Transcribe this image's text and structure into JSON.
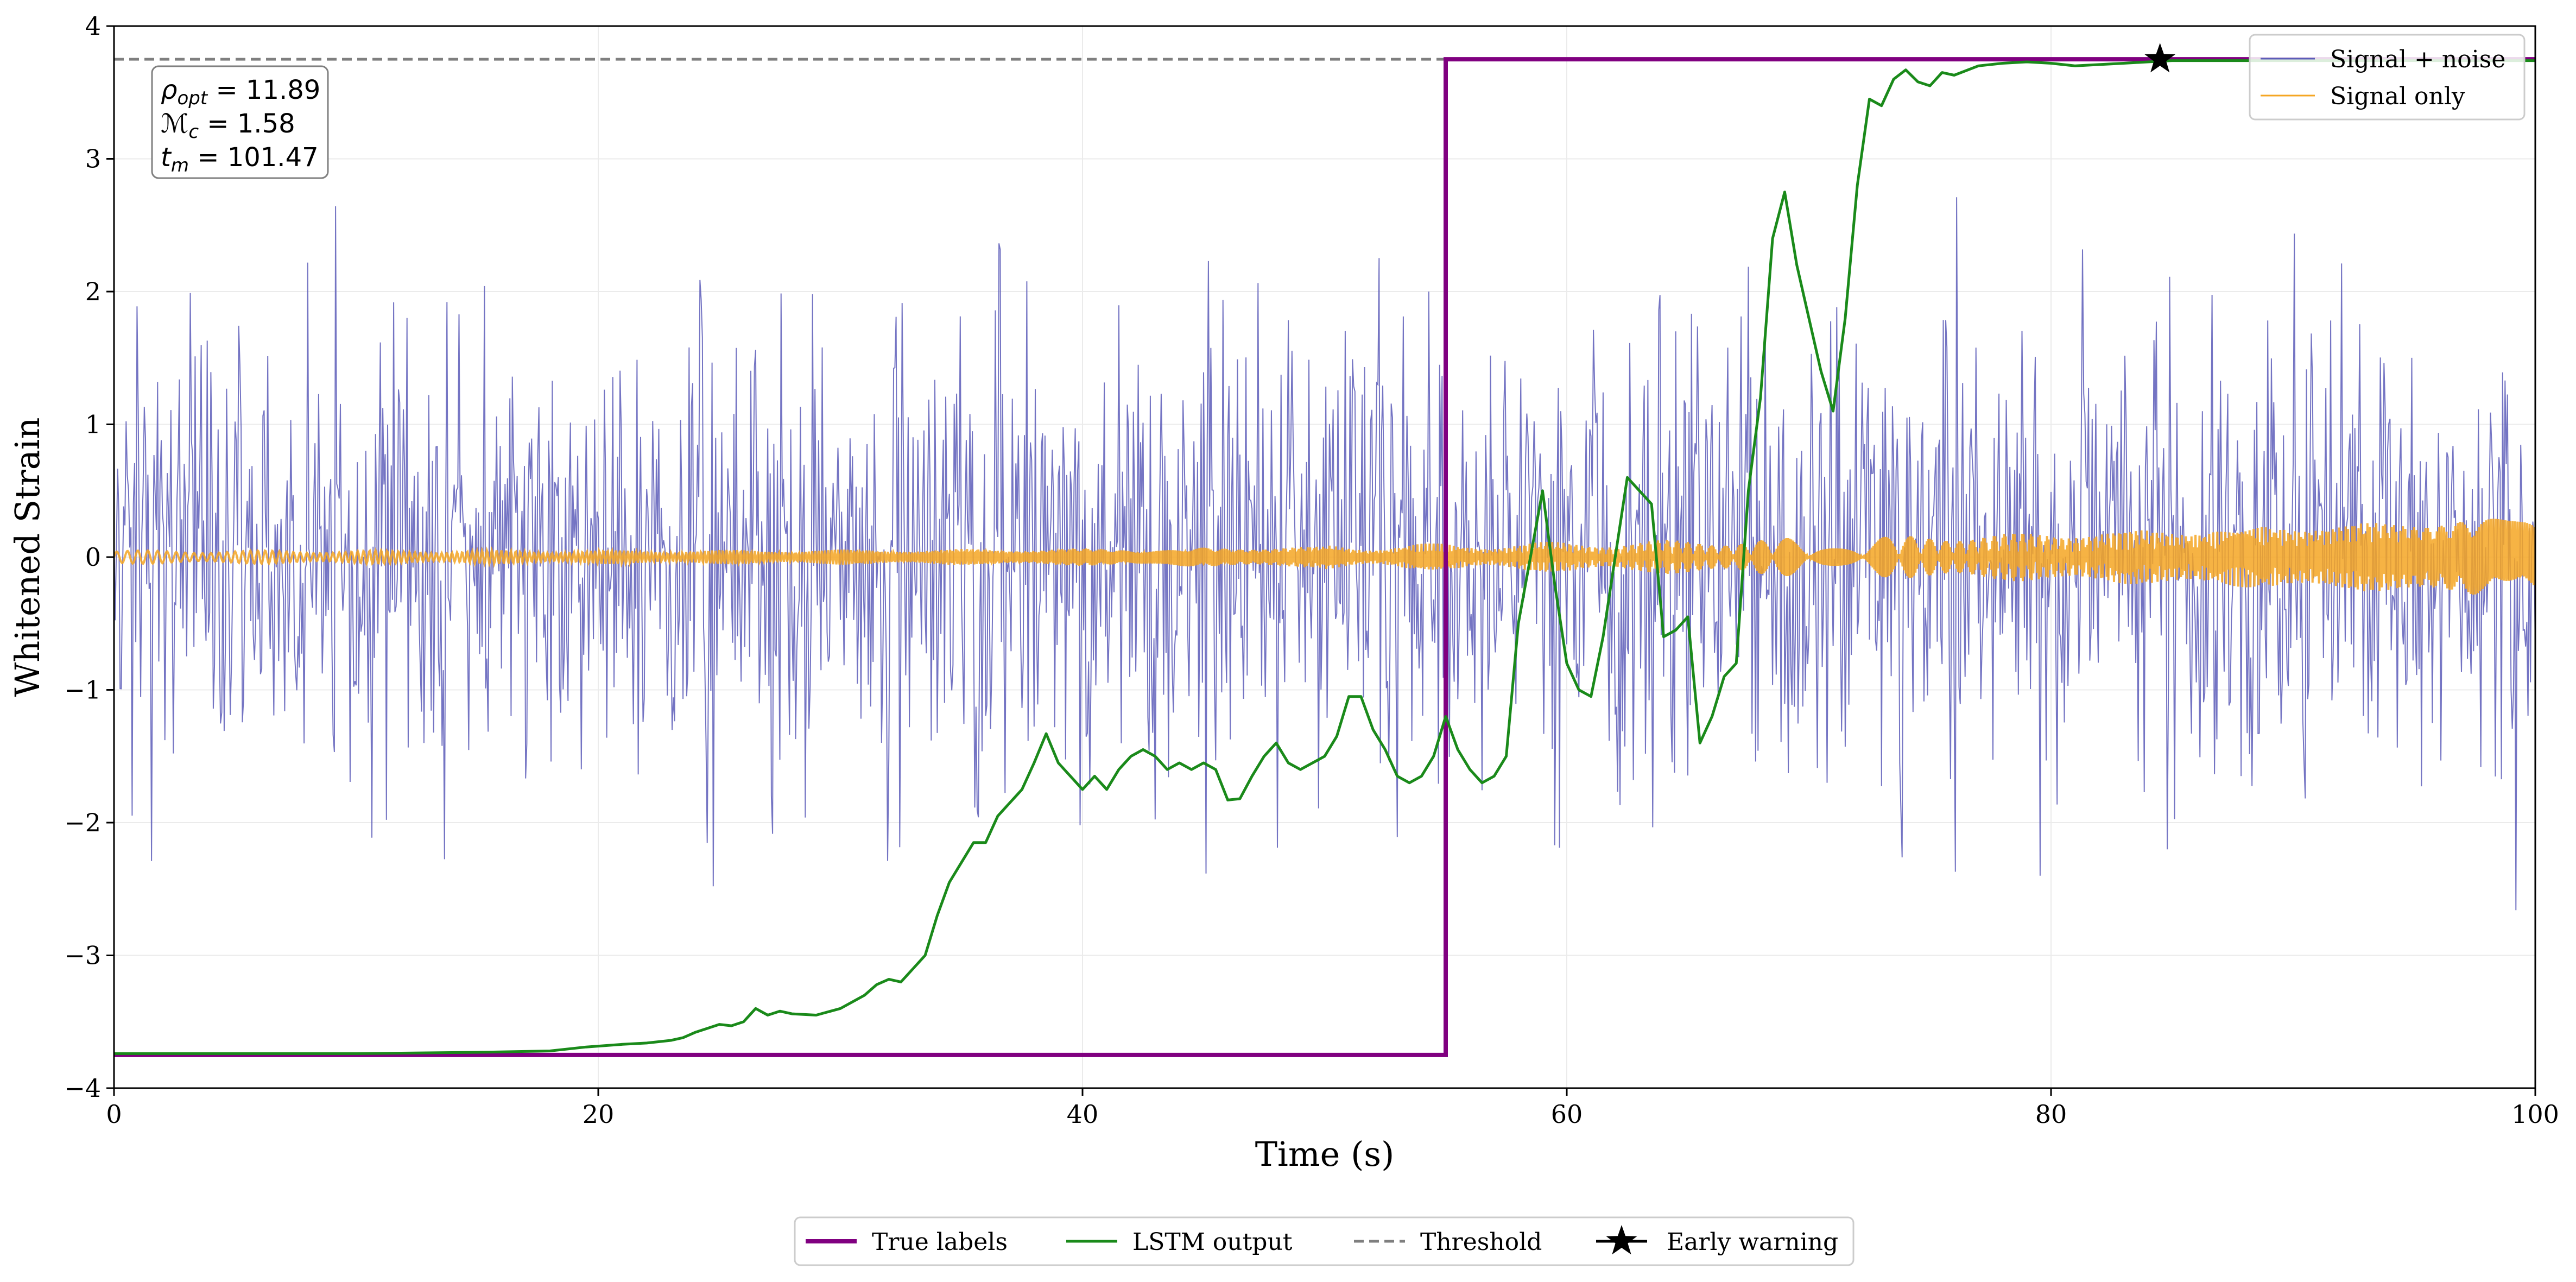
{
  "chart_data": {
    "type": "line",
    "title": "",
    "xlabel": "Time (s)",
    "ylabel": "Whitened Strain",
    "xlim": [
      0,
      100
    ],
    "ylim": [
      -4,
      4
    ],
    "xticks": [
      0,
      20,
      40,
      60,
      80,
      100
    ],
    "xtick_labels": [
      "0",
      "20",
      "40",
      "60",
      "80",
      "100"
    ],
    "yticks": [
      -4,
      -3,
      -2,
      -1,
      0,
      1,
      2,
      3,
      4
    ],
    "ytick_labels": [
      "−4",
      "−3",
      "−2",
      "−1",
      "0",
      "1",
      "2",
      "3",
      "4"
    ],
    "grid": true,
    "annotation": [
      {
        "symbol": "ρ",
        "sub": "opt",
        "text": " = 11.89"
      },
      {
        "symbol": "ℳ",
        "sub": "c",
        "text": " = 1.58"
      },
      {
        "symbol": "t",
        "sub": "m",
        "text": " = 101.47"
      }
    ],
    "legend_inset": {
      "position": "top-right",
      "entries": [
        {
          "label": "Signal + noise",
          "color": "#5c5cb8"
        },
        {
          "label": "Signal only",
          "color": "#f5a623"
        }
      ]
    },
    "legend_bottom": {
      "position": "bottom-center",
      "entries": [
        {
          "label": "True labels",
          "color": "#800080",
          "style": "solid"
        },
        {
          "label": "LSTM output",
          "color": "#1a8a1a",
          "style": "solid"
        },
        {
          "label": "Threshold",
          "color": "#7f7f7f",
          "style": "dashed"
        },
        {
          "label": "Early warning",
          "color": "#000000",
          "style": "star"
        }
      ]
    },
    "series": [
      {
        "name": "Signal + noise",
        "kind": "noise",
        "color": "#5c5cb8",
        "std": 0.85,
        "samples": 2000
      },
      {
        "name": "Signal only",
        "kind": "chirp",
        "color": "#f5a623",
        "amp_start": 0.04,
        "amp_end": 0.28
      },
      {
        "name": "True labels",
        "kind": "step",
        "color": "#800080",
        "x": [
          0,
          55,
          55,
          100
        ],
        "y": [
          -3.75,
          -3.75,
          3.75,
          3.75
        ]
      },
      {
        "name": "LSTM output",
        "kind": "line",
        "color": "#1a8a1a",
        "x": [
          0,
          5,
          10,
          15,
          18,
          19.5,
          21,
          22,
          23,
          23.5,
          24,
          24.5,
          25,
          25.5,
          26,
          26.5,
          27,
          27.5,
          28,
          29,
          30,
          30.5,
          31,
          31.5,
          32,
          32.5,
          33,
          33.5,
          34,
          34.5,
          35,
          35.5,
          36,
          36.5,
          37,
          37.5,
          38,
          38.5,
          39,
          39.5,
          40,
          40.5,
          41,
          41.5,
          42,
          42.5,
          43,
          43.5,
          44,
          44.5,
          45,
          45.5,
          46,
          46.5,
          47,
          47.5,
          48,
          48.5,
          49,
          49.5,
          50,
          50.5,
          51,
          51.5,
          52,
          52.5,
          53,
          53.5,
          54,
          54.5,
          55,
          55.5,
          56,
          56.5,
          57,
          57.5,
          58,
          58.5,
          59,
          59.5,
          60,
          60.5,
          61,
          61.5,
          62,
          62.5,
          63,
          63.5,
          64,
          64.5,
          65,
          65.5,
          66,
          66.5,
          67,
          67.5,
          68,
          68.5,
          69,
          69.5,
          70,
          70.5,
          71,
          71.5,
          72,
          72.5,
          73,
          73.5,
          74,
          74.5,
          75,
          75.5,
          76,
          77,
          78,
          79,
          80,
          81,
          82,
          83,
          84,
          85,
          86,
          88,
          90,
          95,
          100
        ],
        "y": [
          -3.74,
          -3.74,
          -3.74,
          -3.73,
          -3.72,
          -3.69,
          -3.67,
          -3.66,
          -3.64,
          -3.62,
          -3.58,
          -3.55,
          -3.52,
          -3.53,
          -3.5,
          -3.4,
          -3.45,
          -3.42,
          -3.44,
          -3.45,
          -3.4,
          -3.35,
          -3.3,
          -3.22,
          -3.18,
          -3.2,
          -3.1,
          -3.0,
          -2.7,
          -2.45,
          -2.3,
          -2.15,
          -2.15,
          -1.95,
          -1.85,
          -1.75,
          -1.55,
          -1.33,
          -1.55,
          -1.65,
          -1.75,
          -1.65,
          -1.75,
          -1.6,
          -1.5,
          -1.45,
          -1.5,
          -1.6,
          -1.55,
          -1.6,
          -1.55,
          -1.6,
          -1.83,
          -1.82,
          -1.65,
          -1.5,
          -1.4,
          -1.55,
          -1.6,
          -1.55,
          -1.5,
          -1.35,
          -1.05,
          -1.05,
          -1.3,
          -1.45,
          -1.65,
          -1.7,
          -1.65,
          -1.5,
          -1.2,
          -1.45,
          -1.6,
          -1.7,
          -1.65,
          -1.5,
          -0.5,
          0.0,
          0.5,
          -0.2,
          -0.8,
          -1.0,
          -1.05,
          -0.6,
          0.0,
          0.6,
          0.5,
          0.4,
          -0.6,
          -0.55,
          -0.45,
          -1.4,
          -1.2,
          -0.9,
          -0.8,
          0.5,
          1.2,
          2.4,
          2.75,
          2.2,
          1.8,
          1.4,
          1.1,
          1.8,
          2.8,
          3.45,
          3.4,
          3.6,
          3.67,
          3.58,
          3.55,
          3.65,
          3.63,
          3.7,
          3.72,
          3.73,
          3.72,
          3.7,
          3.71,
          3.72,
          3.73,
          3.74,
          3.74,
          3.74,
          3.74,
          3.74,
          3.74
        ]
      },
      {
        "name": "Threshold",
        "kind": "hline",
        "color": "#7f7f7f",
        "y": 3.75
      },
      {
        "name": "Early warning",
        "kind": "marker",
        "color": "#000000",
        "x": 84.5,
        "y": 3.75
      }
    ]
  }
}
